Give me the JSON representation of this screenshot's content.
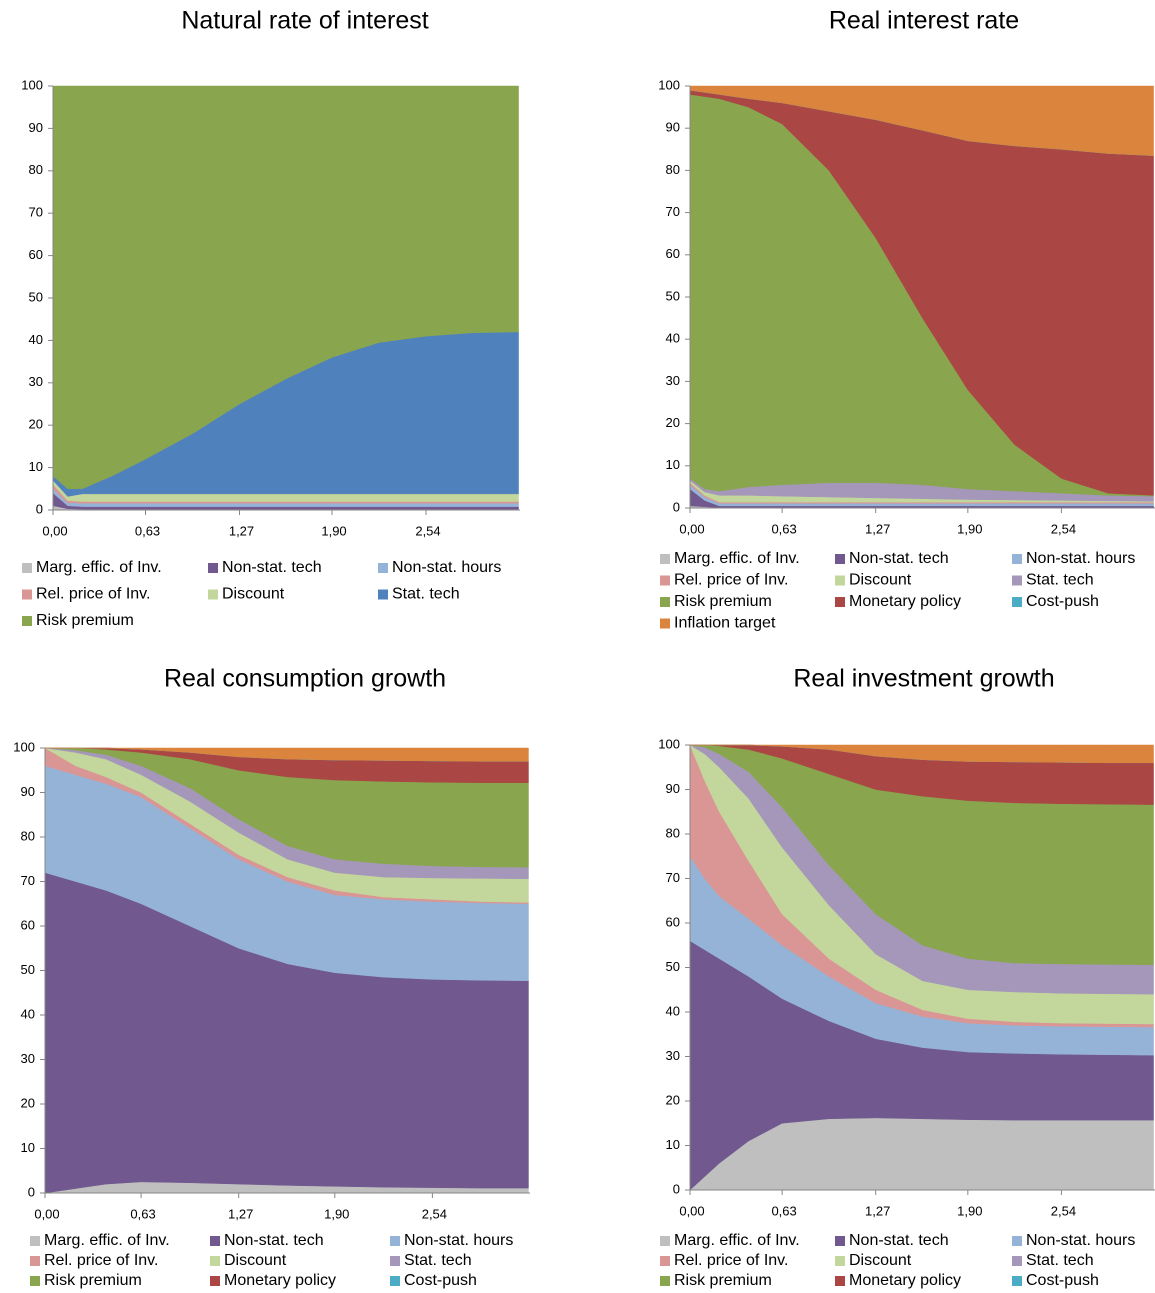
{
  "chart_data": [
    {
      "type": "area",
      "stacked": true,
      "title": "Natural rate of interest",
      "x": [
        0,
        0.1,
        0.2,
        0.4,
        0.63,
        0.95,
        1.27,
        1.59,
        1.9,
        2.22,
        2.54,
        2.86,
        3.17
      ],
      "xlim": [
        0,
        3.18
      ],
      "xticks": [
        {
          "value": 0,
          "label": "0,00"
        },
        {
          "value": 0.63,
          "label": "0,63"
        },
        {
          "value": 1.27,
          "label": "1,27"
        },
        {
          "value": 1.9,
          "label": "1,90"
        },
        {
          "value": 2.54,
          "label": "2,54"
        }
      ],
      "ylim": [
        0,
        100
      ],
      "yticks": [
        0,
        10,
        20,
        30,
        40,
        50,
        60,
        70,
        80,
        90,
        100
      ],
      "series": [
        {
          "name": "Marg. effic. of Inv.",
          "color": "#bfbfbf",
          "values": [
            1,
            0.3,
            0.2,
            0.2,
            0.2,
            0.2,
            0.2,
            0.2,
            0.2,
            0.2,
            0.2,
            0.2,
            0.2
          ]
        },
        {
          "name": "Non-stat. tech",
          "color": "#71588f",
          "values": [
            3,
            0.7,
            0.6,
            0.6,
            0.6,
            0.6,
            0.6,
            0.6,
            0.6,
            0.6,
            0.6,
            0.6,
            0.6
          ]
        },
        {
          "name": "Non-stat. hours",
          "color": "#95b3d7",
          "values": [
            1,
            0.7,
            0.8,
            0.8,
            0.8,
            0.8,
            0.8,
            0.8,
            0.8,
            0.8,
            0.8,
            0.8,
            0.8
          ]
        },
        {
          "name": "Rel. price of Inv.",
          "color": "#d99694",
          "values": [
            1,
            0.5,
            0.4,
            0.4,
            0.4,
            0.4,
            0.4,
            0.4,
            0.4,
            0.4,
            0.4,
            0.4,
            0.4
          ]
        },
        {
          "name": "Discount",
          "color": "#c3d69b",
          "values": [
            1,
            1,
            1.8,
            1.8,
            1.8,
            1.8,
            1.8,
            1.8,
            1.8,
            1.8,
            1.8,
            1.8,
            1.8
          ]
        },
        {
          "name": "Stat. tech",
          "color": "#4f81bd",
          "values": [
            1,
            1.8,
            1.2,
            4.2,
            8.2,
            14.2,
            21.2,
            27.2,
            32.2,
            35.7,
            37.2,
            38,
            38.2
          ]
        },
        {
          "name": "Risk premium",
          "color": "#89a54e",
          "values": [
            92,
            95,
            95,
            92,
            88,
            82,
            75,
            69,
            64,
            60.5,
            59,
            58.2,
            58
          ]
        }
      ]
    },
    {
      "type": "area",
      "stacked": true,
      "title": "Real interest rate",
      "x": [
        0,
        0.1,
        0.2,
        0.4,
        0.63,
        0.95,
        1.27,
        1.59,
        1.9,
        2.22,
        2.54,
        2.86,
        3.17
      ],
      "xlim": [
        0,
        3.18
      ],
      "xticks": [
        {
          "value": 0,
          "label": "0,00"
        },
        {
          "value": 0.63,
          "label": "0,63"
        },
        {
          "value": 1.27,
          "label": "1,27"
        },
        {
          "value": 1.9,
          "label": "1,90"
        },
        {
          "value": 2.54,
          "label": "2,54"
        }
      ],
      "ylim": [
        0,
        100
      ],
      "yticks": [
        0,
        10,
        20,
        30,
        40,
        50,
        60,
        70,
        80,
        90,
        100
      ],
      "series": [
        {
          "name": "Marg. effic. of Inv.",
          "color": "#bfbfbf",
          "values": [
            0.5,
            0.3,
            0.1,
            0.1,
            0.1,
            0.1,
            0.1,
            0.1,
            0.1,
            0.1,
            0.1,
            0.1,
            0.1
          ]
        },
        {
          "name": "Non-stat. tech",
          "color": "#71588f",
          "values": [
            4,
            1.5,
            0.4,
            0.4,
            0.4,
            0.4,
            0.4,
            0.4,
            0.4,
            0.4,
            0.4,
            0.4,
            0.4
          ]
        },
        {
          "name": "Non-stat. hours",
          "color": "#95b3d7",
          "values": [
            1,
            0.8,
            0.6,
            0.6,
            0.6,
            0.6,
            0.6,
            0.6,
            0.6,
            0.6,
            0.6,
            0.6,
            0.6
          ]
        },
        {
          "name": "Rel. price of Inv.",
          "color": "#d99694",
          "values": [
            0.5,
            0.4,
            0.3,
            0.3,
            0.3,
            0.3,
            0.3,
            0.3,
            0.3,
            0.3,
            0.3,
            0.3,
            0.3
          ]
        },
        {
          "name": "Discount",
          "color": "#c3d69b",
          "values": [
            0.5,
            0.8,
            1.6,
            1.6,
            1.4,
            1.2,
            1,
            0.8,
            0.6,
            0.5,
            0.4,
            0.3,
            0.2
          ]
        },
        {
          "name": "Stat. tech",
          "color": "#a597ba",
          "values": [
            0.5,
            0.7,
            1,
            2,
            2.7,
            3.4,
            3.6,
            3.3,
            2.5,
            2.1,
            1.7,
            1.3,
            1.2
          ]
        },
        {
          "name": "Risk premium",
          "color": "#89a54e",
          "values": [
            91,
            93,
            93,
            90,
            85.5,
            74,
            58,
            39.5,
            23.5,
            11,
            3.5,
            0.5,
            0.2
          ]
        },
        {
          "name": "Monetary policy",
          "color": "#aa4643",
          "values": [
            1,
            1,
            1,
            2,
            5,
            14,
            28,
            44.5,
            59,
            70.8,
            78,
            80.5,
            80.5
          ]
        },
        {
          "name": "Cost-push",
          "color": "#4bacc6",
          "values": [
            0,
            0,
            0,
            0,
            0,
            0,
            0,
            0,
            0,
            0,
            0,
            0,
            0
          ]
        },
        {
          "name": "Inflation target",
          "color": "#db843d",
          "values": [
            1,
            1.5,
            2,
            3,
            4,
            6,
            8,
            10.5,
            13,
            14.2,
            15,
            16,
            16.5
          ]
        }
      ]
    },
    {
      "type": "area",
      "stacked": true,
      "title": "Real consumption growth",
      "x": [
        0,
        0.1,
        0.2,
        0.4,
        0.63,
        0.95,
        1.27,
        1.59,
        1.9,
        2.22,
        2.54,
        2.86,
        3.17
      ],
      "xlim": [
        0,
        3.18
      ],
      "xticks": [
        {
          "value": 0,
          "label": "0,00"
        },
        {
          "value": 0.63,
          "label": "0,63"
        },
        {
          "value": 1.27,
          "label": "1,27"
        },
        {
          "value": 1.9,
          "label": "1,90"
        },
        {
          "value": 2.54,
          "label": "2,54"
        }
      ],
      "ylim": [
        0,
        100
      ],
      "yticks": [
        0,
        10,
        20,
        30,
        40,
        50,
        60,
        70,
        80,
        90,
        100
      ],
      "series": [
        {
          "name": "Marg. effic. of Inv.",
          "color": "#bfbfbf",
          "values": [
            0,
            0.5,
            1,
            2,
            2.5,
            2.3,
            2,
            1.7,
            1.5,
            1.3,
            1.2,
            1.1,
            1.1
          ]
        },
        {
          "name": "Non-stat. tech",
          "color": "#71588f",
          "values": [
            72,
            70.5,
            69,
            66,
            62.5,
            57.7,
            53,
            49.8,
            48,
            47.2,
            46.8,
            46.7,
            46.6
          ]
        },
        {
          "name": "Non-stat. hours",
          "color": "#95b3d7",
          "values": [
            24,
            24,
            24,
            24,
            24,
            22,
            20,
            18.5,
            17.5,
            17.5,
            17.5,
            17.4,
            17.3
          ]
        },
        {
          "name": "Rel. price of Inv.",
          "color": "#d99694",
          "values": [
            4,
            3,
            2,
            1.5,
            1,
            1,
            1,
            1,
            1,
            0.5,
            0.5,
            0.3,
            0.3
          ]
        },
        {
          "name": "Discount",
          "color": "#c3d69b",
          "values": [
            0,
            1.5,
            3,
            4,
            4,
            5,
            5,
            4,
            4,
            4.5,
            4.8,
            5.2,
            5.3
          ]
        },
        {
          "name": "Stat. tech",
          "color": "#a597ba",
          "values": [
            0,
            0.3,
            0.5,
            1,
            2,
            3,
            3,
            3,
            3,
            3,
            2.7,
            2.6,
            2.6
          ]
        },
        {
          "name": "Risk premium",
          "color": "#89a54e",
          "values": [
            0,
            0.2,
            0.5,
            1.2,
            3,
            6.5,
            11,
            15.5,
            17.8,
            18.5,
            18.8,
            18.9,
            19
          ]
        },
        {
          "name": "Monetary policy",
          "color": "#aa4643",
          "values": [
            0,
            0,
            0,
            0.3,
            0.7,
            1.5,
            3,
            4,
            4.5,
            4.7,
            4.8,
            4.8,
            4.8
          ]
        },
        {
          "name": "Cost-push",
          "color": "#4bacc6",
          "values": [
            0,
            0,
            0,
            0,
            0,
            0,
            0,
            0,
            0,
            0,
            0,
            0,
            0
          ]
        },
        {
          "color": "#db843d",
          "values": [
            0,
            0,
            0,
            0,
            0.3,
            1,
            2,
            2.5,
            2.7,
            2.8,
            2.9,
            3,
            3
          ]
        }
      ]
    },
    {
      "type": "area",
      "stacked": true,
      "title": "Real investment growth",
      "x": [
        0,
        0.1,
        0.2,
        0.4,
        0.63,
        0.95,
        1.27,
        1.59,
        1.9,
        2.22,
        2.54,
        2.86,
        3.17
      ],
      "xlim": [
        0,
        3.18
      ],
      "xticks": [
        {
          "value": 0,
          "label": "0,00"
        },
        {
          "value": 0.63,
          "label": "0,63"
        },
        {
          "value": 1.27,
          "label": "1,27"
        },
        {
          "value": 1.9,
          "label": "1,90"
        },
        {
          "value": 2.54,
          "label": "2,54"
        }
      ],
      "ylim": [
        0,
        100
      ],
      "yticks": [
        0,
        10,
        20,
        30,
        40,
        50,
        60,
        70,
        80,
        90,
        100
      ],
      "series": [
        {
          "name": "Marg. effic. of Inv.",
          "color": "#bfbfbf",
          "values": [
            0,
            3,
            6,
            11,
            15,
            16,
            16.2,
            16,
            15.8,
            15.7,
            15.7,
            15.7,
            15.7
          ]
        },
        {
          "name": "Non-stat. tech",
          "color": "#71588f",
          "values": [
            56,
            51,
            46,
            37,
            28,
            22,
            17.8,
            16,
            15.2,
            15,
            14.8,
            14.7,
            14.6
          ]
        },
        {
          "name": "Non-stat. hours",
          "color": "#95b3d7",
          "values": [
            19,
            16,
            14,
            13,
            12,
            10,
            8,
            7,
            6.5,
            6.3,
            6.3,
            6.3,
            6.3
          ]
        },
        {
          "name": "Rel. price of Inv.",
          "color": "#d99694",
          "values": [
            25,
            22,
            19,
            13,
            7,
            4,
            3,
            1.5,
            1,
            0.8,
            0.7,
            0.7,
            0.7
          ]
        },
        {
          "name": "Discount",
          "color": "#c3d69b",
          "values": [
            0,
            6,
            10,
            14,
            15,
            12,
            8,
            6.5,
            6.5,
            6.7,
            6.7,
            6.7,
            6.7
          ]
        },
        {
          "name": "Stat. tech",
          "color": "#a597ba",
          "values": [
            0,
            1.5,
            3,
            6,
            9,
            9,
            9,
            8,
            7,
            6.5,
            6.6,
            6.6,
            6.6
          ]
        },
        {
          "name": "Risk premium",
          "color": "#89a54e",
          "values": [
            0,
            0.5,
            1.8,
            5,
            11,
            20.5,
            28,
            33.5,
            35.5,
            36,
            36,
            36,
            36
          ]
        },
        {
          "name": "Monetary policy",
          "color": "#aa4643",
          "values": [
            0,
            0,
            0.2,
            1,
            2.7,
            5.5,
            7.5,
            8.2,
            8.8,
            9.2,
            9.3,
            9.3,
            9.4
          ]
        },
        {
          "name": "Cost-push",
          "color": "#4bacc6",
          "values": [
            0,
            0,
            0,
            0,
            0,
            0,
            0,
            0,
            0,
            0,
            0,
            0,
            0
          ]
        },
        {
          "color": "#db843d",
          "values": [
            0,
            0,
            0,
            0,
            0.3,
            1,
            2.5,
            3.3,
            3.7,
            3.8,
            3.9,
            4,
            4
          ]
        }
      ]
    }
  ]
}
